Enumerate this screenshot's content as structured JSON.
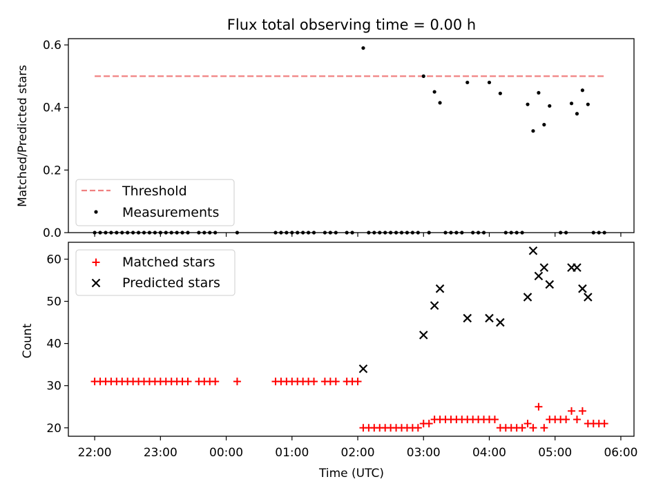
{
  "figure": {
    "title": "Flux total observing time = 0.00 h",
    "x_tick_labels": [
      "22:00",
      "23:00",
      "00:00",
      "01:00",
      "02:00",
      "03:00",
      "04:00",
      "05:00",
      "06:00"
    ],
    "xlabel": "Time (UTC)"
  },
  "colors": {
    "threshold": "#f08080",
    "measurements": "#000000",
    "matched": "#ff0000",
    "predicted": "#000000"
  },
  "chart_data": [
    {
      "type": "scatter",
      "ylabel": "Matched/Predicted stars",
      "xlim_hours": [
        -0.4,
        8.2
      ],
      "ylim": [
        0,
        0.62
      ],
      "yticks": [
        0.0,
        0.2,
        0.4,
        0.6
      ],
      "grid": false,
      "legend_placement": "lower-left",
      "threshold": {
        "name": "Threshold",
        "y": 0.5,
        "x_start": "22:00",
        "x_end": "05:45"
      },
      "series": [
        {
          "name": "Measurements",
          "points": [
            [
              "22:00",
              0
            ],
            [
              "22:05",
              0
            ],
            [
              "22:10",
              0
            ],
            [
              "22:15",
              0
            ],
            [
              "22:20",
              0
            ],
            [
              "22:25",
              0
            ],
            [
              "22:30",
              0
            ],
            [
              "22:35",
              0
            ],
            [
              "22:40",
              0
            ],
            [
              "22:45",
              0
            ],
            [
              "22:50",
              0
            ],
            [
              "22:55",
              0
            ],
            [
              "23:00",
              0
            ],
            [
              "23:05",
              0
            ],
            [
              "23:10",
              0
            ],
            [
              "23:15",
              0
            ],
            [
              "23:20",
              0
            ],
            [
              "23:25",
              0
            ],
            [
              "23:35",
              0
            ],
            [
              "23:40",
              0
            ],
            [
              "23:45",
              0
            ],
            [
              "23:50",
              0
            ],
            [
              "00:10",
              0
            ],
            [
              "00:45",
              0
            ],
            [
              "00:50",
              0
            ],
            [
              "00:55",
              0
            ],
            [
              "01:00",
              0
            ],
            [
              "01:05",
              0
            ],
            [
              "01:10",
              0
            ],
            [
              "01:15",
              0
            ],
            [
              "01:20",
              0
            ],
            [
              "01:30",
              0
            ],
            [
              "01:35",
              0
            ],
            [
              "01:40",
              0
            ],
            [
              "01:50",
              0
            ],
            [
              "01:55",
              0
            ],
            [
              "02:05",
              0.59
            ],
            [
              "02:10",
              0
            ],
            [
              "02:15",
              0
            ],
            [
              "02:20",
              0
            ],
            [
              "02:25",
              0
            ],
            [
              "02:30",
              0
            ],
            [
              "02:35",
              0
            ],
            [
              "02:40",
              0
            ],
            [
              "02:45",
              0
            ],
            [
              "02:50",
              0
            ],
            [
              "02:55",
              0
            ],
            [
              "03:00",
              0.5
            ],
            [
              "03:05",
              0
            ],
            [
              "03:10",
              0.45
            ],
            [
              "03:15",
              0.415
            ],
            [
              "03:20",
              0
            ],
            [
              "03:25",
              0
            ],
            [
              "03:30",
              0
            ],
            [
              "03:35",
              0
            ],
            [
              "03:40",
              0.48
            ],
            [
              "03:45",
              0
            ],
            [
              "03:50",
              0
            ],
            [
              "03:55",
              0
            ],
            [
              "04:00",
              0.48
            ],
            [
              "04:10",
              0.445
            ],
            [
              "04:15",
              0
            ],
            [
              "04:20",
              0
            ],
            [
              "04:25",
              0
            ],
            [
              "04:30",
              0
            ],
            [
              "04:35",
              0.41
            ],
            [
              "04:40",
              0.325
            ],
            [
              "04:45",
              0.447
            ],
            [
              "04:50",
              0.345
            ],
            [
              "04:55",
              0.405
            ],
            [
              "05:05",
              0
            ],
            [
              "05:10",
              0
            ],
            [
              "05:15",
              0.413
            ],
            [
              "05:20",
              0.38
            ],
            [
              "05:25",
              0.455
            ],
            [
              "05:30",
              0.41
            ],
            [
              "05:35",
              0
            ],
            [
              "05:40",
              0
            ],
            [
              "05:45",
              0
            ]
          ]
        }
      ]
    },
    {
      "type": "scatter",
      "ylabel": "Count",
      "xlabel": "Time (UTC)",
      "xlim_hours": [
        -0.4,
        8.2
      ],
      "ylim": [
        18,
        64
      ],
      "yticks": [
        20,
        30,
        40,
        50,
        60
      ],
      "grid": false,
      "legend_placement": "upper-left",
      "series": [
        {
          "name": "Matched stars",
          "marker": "plus",
          "points": [
            [
              "22:00",
              31
            ],
            [
              "22:05",
              31
            ],
            [
              "22:10",
              31
            ],
            [
              "22:15",
              31
            ],
            [
              "22:20",
              31
            ],
            [
              "22:25",
              31
            ],
            [
              "22:30",
              31
            ],
            [
              "22:35",
              31
            ],
            [
              "22:40",
              31
            ],
            [
              "22:45",
              31
            ],
            [
              "22:50",
              31
            ],
            [
              "22:55",
              31
            ],
            [
              "23:00",
              31
            ],
            [
              "23:05",
              31
            ],
            [
              "23:10",
              31
            ],
            [
              "23:15",
              31
            ],
            [
              "23:20",
              31
            ],
            [
              "23:25",
              31
            ],
            [
              "23:35",
              31
            ],
            [
              "23:40",
              31
            ],
            [
              "23:45",
              31
            ],
            [
              "23:50",
              31
            ],
            [
              "00:10",
              31
            ],
            [
              "00:45",
              31
            ],
            [
              "00:50",
              31
            ],
            [
              "00:55",
              31
            ],
            [
              "01:00",
              31
            ],
            [
              "01:05",
              31
            ],
            [
              "01:10",
              31
            ],
            [
              "01:15",
              31
            ],
            [
              "01:20",
              31
            ],
            [
              "01:30",
              31
            ],
            [
              "01:35",
              31
            ],
            [
              "01:40",
              31
            ],
            [
              "01:50",
              31
            ],
            [
              "01:55",
              31
            ],
            [
              "02:00",
              31
            ],
            [
              "02:05",
              20
            ],
            [
              "02:10",
              20
            ],
            [
              "02:15",
              20
            ],
            [
              "02:20",
              20
            ],
            [
              "02:25",
              20
            ],
            [
              "02:30",
              20
            ],
            [
              "02:35",
              20
            ],
            [
              "02:40",
              20
            ],
            [
              "02:45",
              20
            ],
            [
              "02:50",
              20
            ],
            [
              "02:55",
              20
            ],
            [
              "03:00",
              21
            ],
            [
              "03:05",
              21
            ],
            [
              "03:10",
              22
            ],
            [
              "03:15",
              22
            ],
            [
              "03:20",
              22
            ],
            [
              "03:25",
              22
            ],
            [
              "03:30",
              22
            ],
            [
              "03:35",
              22
            ],
            [
              "03:40",
              22
            ],
            [
              "03:45",
              22
            ],
            [
              "03:50",
              22
            ],
            [
              "03:55",
              22
            ],
            [
              "04:00",
              22
            ],
            [
              "04:05",
              22
            ],
            [
              "04:10",
              20
            ],
            [
              "04:15",
              20
            ],
            [
              "04:20",
              20
            ],
            [
              "04:25",
              20
            ],
            [
              "04:30",
              20
            ],
            [
              "04:35",
              21
            ],
            [
              "04:40",
              20
            ],
            [
              "04:45",
              25
            ],
            [
              "04:50",
              20
            ],
            [
              "04:55",
              22
            ],
            [
              "05:00",
              22
            ],
            [
              "05:05",
              22
            ],
            [
              "05:10",
              22
            ],
            [
              "05:15",
              24
            ],
            [
              "05:20",
              22
            ],
            [
              "05:25",
              24
            ],
            [
              "05:30",
              21
            ],
            [
              "05:35",
              21
            ],
            [
              "05:40",
              21
            ],
            [
              "05:45",
              21
            ]
          ]
        },
        {
          "name": "Predicted stars",
          "marker": "x",
          "points": [
            [
              "02:05",
              34
            ],
            [
              "03:00",
              42
            ],
            [
              "03:10",
              49
            ],
            [
              "03:15",
              53
            ],
            [
              "03:40",
              46
            ],
            [
              "04:00",
              46
            ],
            [
              "04:10",
              45
            ],
            [
              "04:35",
              51
            ],
            [
              "04:40",
              62
            ],
            [
              "04:45",
              56
            ],
            [
              "04:50",
              58
            ],
            [
              "04:55",
              54
            ],
            [
              "05:15",
              58
            ],
            [
              "05:20",
              58
            ],
            [
              "05:25",
              53
            ],
            [
              "05:30",
              51
            ]
          ]
        }
      ]
    }
  ]
}
